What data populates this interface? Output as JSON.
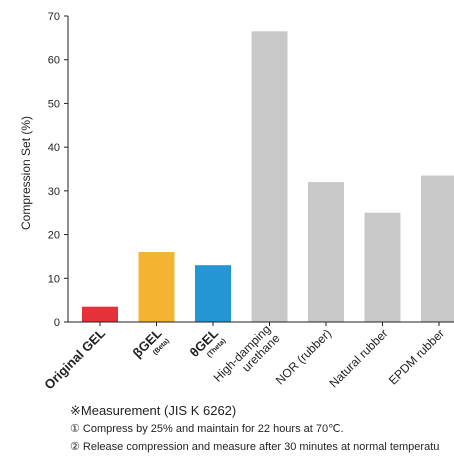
{
  "chart_data": {
    "type": "bar",
    "ylabel": "Compression Set (%)",
    "xlabel": "",
    "ylim": [
      0,
      70
    ],
    "yticks": [
      0,
      10,
      20,
      30,
      40,
      50,
      60,
      70
    ],
    "grid": false,
    "categories": [
      {
        "label": "Original GEL",
        "sub": "",
        "style": "bold"
      },
      {
        "label": "βGEL",
        "sub": "(Beta)",
        "style": "bold"
      },
      {
        "label": "θGEL",
        "sub": "(Theta)",
        "style": "bold"
      },
      {
        "label": "High-damping urethane",
        "sub": "",
        "style": "normal"
      },
      {
        "label": "NOR (rubber)",
        "sub": "",
        "style": "normal"
      },
      {
        "label": "Natural rubber",
        "sub": "",
        "style": "normal"
      },
      {
        "label": "EPDM rubber",
        "sub": "",
        "style": "normal"
      }
    ],
    "values": [
      3.5,
      16,
      13,
      66.5,
      32,
      25,
      33.5
    ],
    "colors": [
      "#e5323a",
      "#f4b333",
      "#2596d4",
      "#c8c8c8",
      "#c8c8c8",
      "#c8c8c8",
      "#c8c8c8"
    ]
  },
  "notes": {
    "title": "※Measurement (JIS K 6262)",
    "lines": [
      "① Compress by 25% and maintain for 22 hours at 70℃.",
      "② Release compression and measure after 30 minutes at normal temperatu"
    ]
  }
}
